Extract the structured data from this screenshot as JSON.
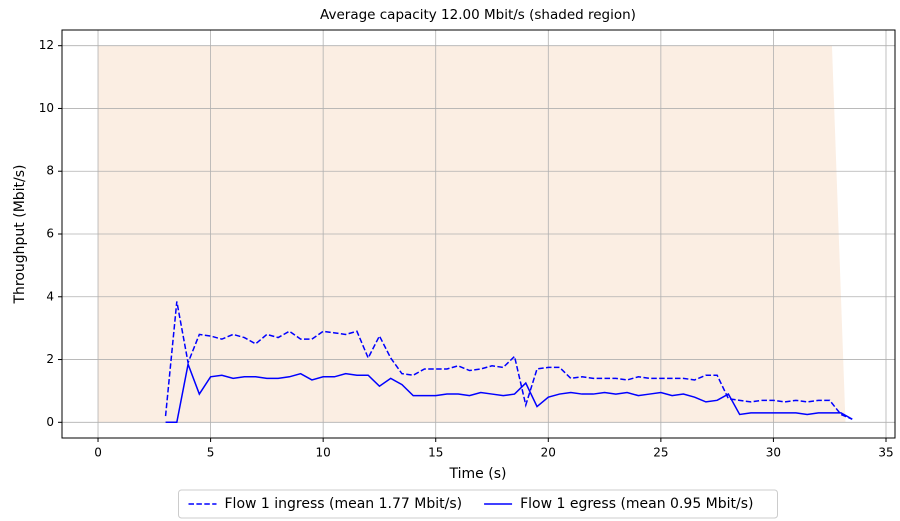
{
  "chart_data": {
    "type": "line",
    "title": "Average capacity 12.00 Mbit/s (shaded region)",
    "x_label": "Time (s)",
    "y_label": "Throughput (Mbit/s)",
    "xlim": [
      -1.6,
      35.4
    ],
    "ylim": [
      -0.5,
      12.5
    ],
    "xticks": [
      0,
      5,
      10,
      15,
      20,
      25,
      30,
      35
    ],
    "yticks": [
      0,
      2,
      4,
      6,
      8,
      10,
      12
    ],
    "grid": true,
    "legend": "bottom",
    "shaded": {
      "color": "#fbeee3",
      "x": [
        0,
        0,
        32.6,
        33.2
      ],
      "values": [
        0,
        12,
        12,
        0
      ]
    },
    "x": [
      3,
      3.5,
      4,
      4.5,
      5,
      5.5,
      6,
      6.5,
      7,
      7.5,
      8,
      8.5,
      9,
      9.5,
      10,
      10.5,
      11,
      11.5,
      12,
      12.5,
      13,
      13.5,
      14,
      14.5,
      15,
      15.5,
      16,
      16.5,
      17,
      17.5,
      18,
      18.5,
      19,
      19.5,
      20,
      20.5,
      21,
      21.5,
      22,
      22.5,
      23,
      23.5,
      24,
      24.5,
      25,
      25.5,
      26,
      26.5,
      27,
      27.5,
      28,
      28.5,
      29,
      29.5,
      30,
      30.5,
      31,
      31.5,
      32,
      32.5,
      33,
      33.5
    ],
    "series": [
      {
        "name": "Flow 1 ingress (mean 1.77 Mbit/s)",
        "color": "#0000ff",
        "linestyle": "dashed",
        "values": [
          0.2,
          3.85,
          1.9,
          2.8,
          2.75,
          2.65,
          2.8,
          2.7,
          2.5,
          2.8,
          2.7,
          2.9,
          2.65,
          2.65,
          2.9,
          2.85,
          2.8,
          2.9,
          2.05,
          2.75,
          2.05,
          1.55,
          1.5,
          1.7,
          1.7,
          1.7,
          1.8,
          1.65,
          1.7,
          1.8,
          1.75,
          2.1,
          0.55,
          1.7,
          1.75,
          1.75,
          1.4,
          1.45,
          1.4,
          1.4,
          1.4,
          1.35,
          1.45,
          1.4,
          1.4,
          1.4,
          1.4,
          1.35,
          1.5,
          1.5,
          0.75,
          0.7,
          0.65,
          0.7,
          0.7,
          0.65,
          0.7,
          0.65,
          0.7,
          0.7,
          0.25,
          0.1
        ]
      },
      {
        "name": "Flow 1 egress (mean 0.95 Mbit/s)",
        "color": "#0000ff",
        "linestyle": "solid",
        "values": [
          0,
          0,
          1.85,
          0.9,
          1.45,
          1.5,
          1.4,
          1.45,
          1.45,
          1.4,
          1.4,
          1.45,
          1.55,
          1.35,
          1.45,
          1.45,
          1.55,
          1.5,
          1.5,
          1.15,
          1.4,
          1.2,
          0.85,
          0.85,
          0.85,
          0.9,
          0.9,
          0.85,
          0.95,
          0.9,
          0.85,
          0.9,
          1.25,
          0.5,
          0.8,
          0.9,
          0.95,
          0.9,
          0.9,
          0.95,
          0.9,
          0.95,
          0.85,
          0.9,
          0.95,
          0.85,
          0.9,
          0.8,
          0.65,
          0.7,
          0.9,
          0.25,
          0.3,
          0.3,
          0.3,
          0.3,
          0.3,
          0.25,
          0.3,
          0.3,
          0.3,
          0.1
        ]
      }
    ]
  }
}
